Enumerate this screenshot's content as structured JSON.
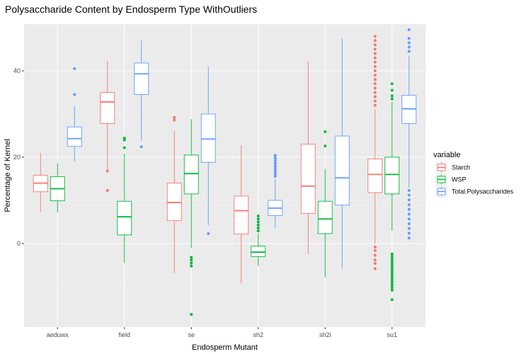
{
  "chart_data": {
    "type": "boxplot",
    "title": "Polysaccharide Content by Endosperm Type WithOutliers",
    "xlabel": "Endosperm Mutant",
    "ylabel": "Percentage of Kernel",
    "ylim": [
      -20,
      50
    ],
    "yticks": [
      0,
      20,
      40
    ],
    "grid": true,
    "categories": [
      "aeduwx",
      "field",
      "se",
      "sh2",
      "sh2i",
      "su1"
    ],
    "legend": {
      "title": "variable",
      "position": "right",
      "entries": [
        {
          "name": "Starch",
          "color": "#F8766D"
        },
        {
          "name": "WSP",
          "color": "#00BA38"
        },
        {
          "name": "Total.Polysaccharides",
          "color": "#619CFF"
        }
      ]
    },
    "series": [
      {
        "name": "Starch",
        "color": "#F8766D",
        "boxes": [
          {
            "category": "aeduwx",
            "whisker_low": 7.2,
            "q1": 12,
            "median": 14,
            "q3": 15.8,
            "whisker_high": 21,
            "outliers": []
          },
          {
            "category": "field",
            "whisker_low": 17,
            "q1": 27.8,
            "median": 32.8,
            "q3": 35,
            "whisker_high": 42.3,
            "outliers": [
              12.3,
              16.8
            ]
          },
          {
            "category": "se",
            "whisker_low": -6.8,
            "q1": 5.3,
            "median": 9.5,
            "q3": 14,
            "whisker_high": 26,
            "outliers": [
              28.6,
              29.2
            ]
          },
          {
            "category": "sh2",
            "whisker_low": -9.2,
            "q1": 2.2,
            "median": 7.6,
            "q3": 11,
            "whisker_high": 22.8,
            "outliers": []
          },
          {
            "category": "sh2i",
            "whisker_low": -2.5,
            "q1": 7,
            "median": 13.3,
            "q3": 23,
            "whisker_high": 42.2,
            "outliers": []
          },
          {
            "category": "su1",
            "whisker_low": 0,
            "q1": 11.8,
            "median": 16,
            "q3": 19.6,
            "whisker_high": 31,
            "outliers": [
              -5.8,
              -4.6,
              -3.8,
              -2.7,
              -1.6,
              -0.8,
              32,
              33,
              34,
              35,
              36,
              37,
              38,
              39,
              40,
              41,
              42,
              43,
              44,
              45,
              46,
              47,
              48
            ]
          }
        ]
      },
      {
        "name": "WSP",
        "color": "#00BA38",
        "boxes": [
          {
            "category": "aeduwx",
            "whisker_low": 7.2,
            "q1": 9.9,
            "median": 12.7,
            "q3": 15.5,
            "whisker_high": 18.6,
            "outliers": []
          },
          {
            "category": "field",
            "whisker_low": -4.5,
            "q1": 2,
            "median": 6.2,
            "q3": 9.8,
            "whisker_high": 20.8,
            "outliers": [
              22.2,
              24,
              24.4
            ]
          },
          {
            "category": "se",
            "whisker_low": -1,
            "q1": 11.5,
            "median": 16.2,
            "q3": 20.5,
            "whisker_high": 28.8,
            "outliers": [
              -16.4,
              -5.2,
              -4.5,
              -3.8,
              -3.2
            ]
          },
          {
            "category": "sh2",
            "whisker_low": -5.2,
            "q1": -3,
            "median": -2,
            "q3": -0.6,
            "whisker_high": 2.3,
            "outliers": [
              2.9,
              3.6,
              4.3,
              5.0,
              5.7,
              6.4
            ]
          },
          {
            "category": "sh2i",
            "whisker_low": -7.8,
            "q1": 2.3,
            "median": 5.7,
            "q3": 9.8,
            "whisker_high": 17.3,
            "outliers": [
              22.6,
              25.9
            ]
          },
          {
            "category": "su1",
            "whisker_low": 3,
            "q1": 11.5,
            "median": 16,
            "q3": 20,
            "whisker_high": 32.8,
            "outliers": [
              -13,
              -10.8,
              -10.2,
              -9.6,
              -9,
              -8.4,
              -7.8,
              -7.2,
              -6.6,
              -6,
              -5.4,
              -4.8,
              -4.2,
              -3.6,
              -3,
              -2.4,
              33.5,
              34.2,
              35.5,
              37
            ]
          }
        ]
      },
      {
        "name": "Total.Polysaccharides",
        "color": "#619CFF",
        "boxes": [
          {
            "category": "aeduwx",
            "whisker_low": 19,
            "q1": 22.5,
            "median": 24.3,
            "q3": 27,
            "whisker_high": 31.8,
            "outliers": [
              34.5,
              40.5
            ]
          },
          {
            "category": "field",
            "whisker_low": 23.8,
            "q1": 34.5,
            "median": 39.3,
            "q3": 41.8,
            "whisker_high": 47,
            "outliers": [
              22.4
            ]
          },
          {
            "category": "se",
            "whisker_low": 4.2,
            "q1": 18.8,
            "median": 24.2,
            "q3": 30,
            "whisker_high": 41,
            "outliers": [
              2.3
            ]
          },
          {
            "category": "sh2",
            "whisker_low": 3.6,
            "q1": 6.5,
            "median": 8.2,
            "q3": 10,
            "whisker_high": 15,
            "outliers": [
              15.6,
              16.2,
              16.8,
              17.4,
              18.0,
              18.6,
              19.2,
              19.8,
              20.4
            ]
          },
          {
            "category": "sh2i",
            "whisker_low": -5.8,
            "q1": 8.9,
            "median": 15.2,
            "q3": 24.9,
            "whisker_high": 47.5,
            "outliers": []
          },
          {
            "category": "su1",
            "whisker_low": 13,
            "q1": 27.8,
            "median": 31.2,
            "q3": 34.3,
            "whisker_high": 43.5,
            "outliers": [
              1.3,
              2.4,
              3.5,
              4.6,
              5.7,
              6.8,
              7.9,
              9,
              10.1,
              11.2,
              12.3,
              44.5,
              45.5,
              46.5,
              47.5,
              49.5
            ]
          }
        ]
      }
    ]
  }
}
